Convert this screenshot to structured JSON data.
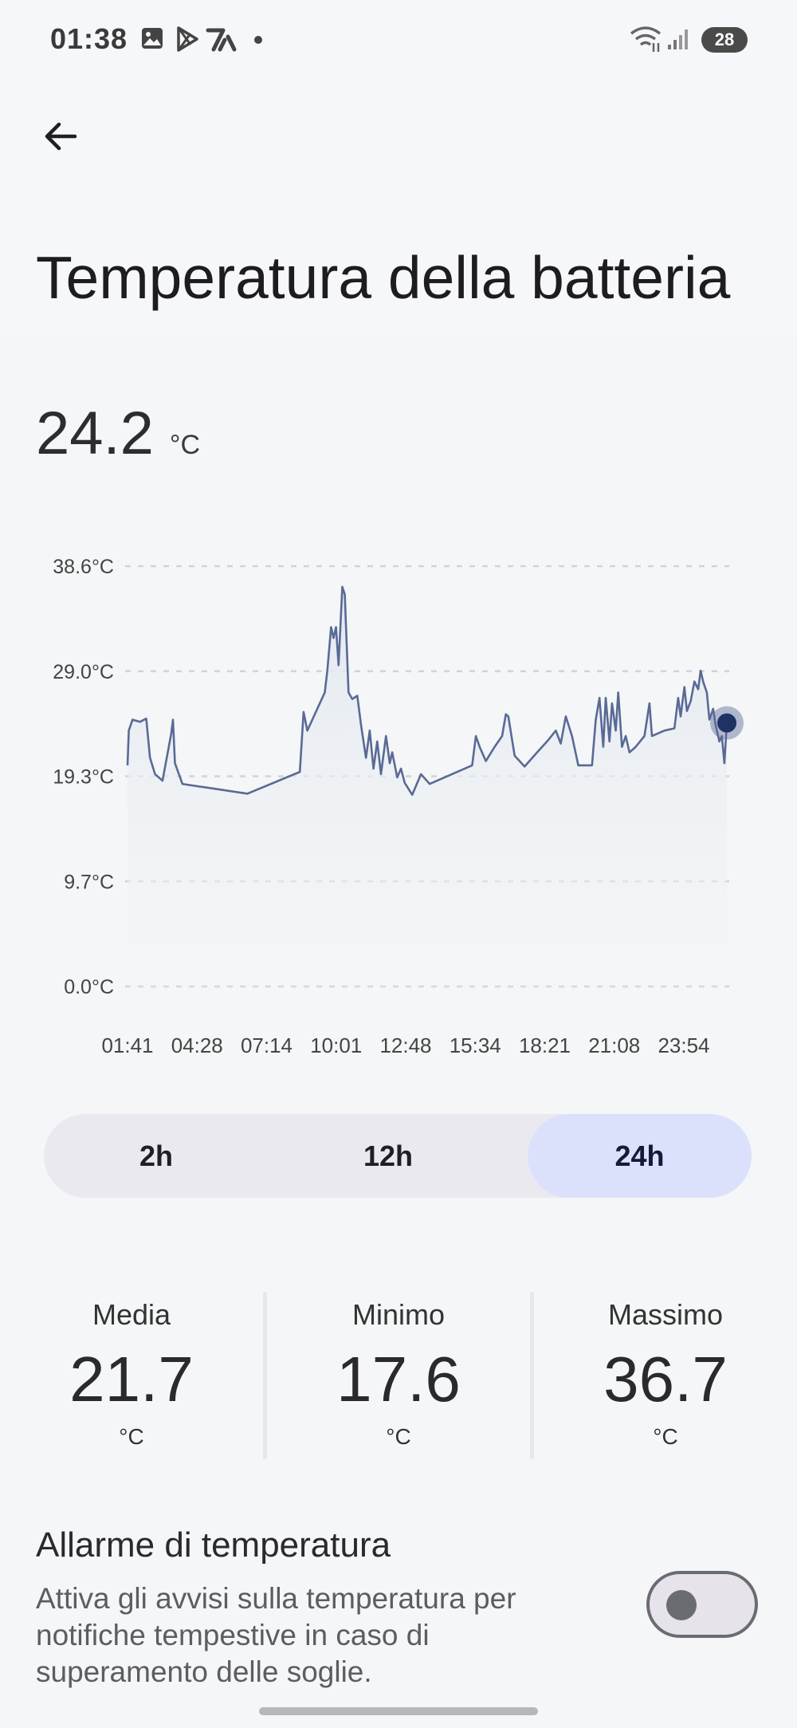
{
  "status_bar": {
    "time": "01:38",
    "battery_level": "28",
    "icons": [
      "image-icon",
      "play-store-icon",
      "app-icon",
      "dot-icon",
      "wifi-icon",
      "signal-icon",
      "battery-icon"
    ]
  },
  "header": {
    "back_icon": "arrow-left-icon",
    "title": "Temperatura della batteria"
  },
  "current": {
    "value": "24.2",
    "unit": "°C"
  },
  "chart_data": {
    "type": "area",
    "title": "",
    "xlabel": "",
    "ylabel": "",
    "y_ticks": [
      "38.6°C",
      "29.0°C",
      "19.3°C",
      "9.7°C",
      "0.0°C"
    ],
    "x_ticks": [
      "01:41",
      "04:28",
      "07:14",
      "10:01",
      "12:48",
      "15:34",
      "18:21",
      "21:08",
      "23:54"
    ],
    "ylim": [
      0,
      38.6
    ],
    "x_unit": "hours from 01:41",
    "x_range": [
      0,
      24
    ],
    "grid": true,
    "line_color": "#5a6a96",
    "fill_color": "#e4eaf1",
    "marker_color": "#1f3264",
    "series": [
      {
        "points": [
          [
            0.0,
            20.3
          ],
          [
            0.05,
            23.5
          ],
          [
            0.2,
            24.5
          ],
          [
            0.5,
            24.3
          ],
          [
            0.75,
            24.6
          ],
          [
            0.9,
            21.0
          ],
          [
            1.1,
            19.5
          ],
          [
            1.4,
            18.9
          ],
          [
            1.75,
            23.2
          ],
          [
            1.82,
            24.5
          ],
          [
            1.9,
            20.5
          ],
          [
            2.2,
            18.6
          ],
          [
            4.8,
            17.7
          ],
          [
            6.9,
            19.7
          ],
          [
            7.05,
            25.2
          ],
          [
            7.2,
            23.5
          ],
          [
            7.9,
            27.0
          ],
          [
            8.0,
            29.0
          ],
          [
            8.15,
            33.0
          ],
          [
            8.25,
            32.0
          ],
          [
            8.35,
            33.0
          ],
          [
            8.45,
            29.5
          ],
          [
            8.6,
            36.7
          ],
          [
            8.7,
            36.0
          ],
          [
            8.85,
            27.0
          ],
          [
            9.0,
            26.4
          ],
          [
            9.2,
            26.7
          ],
          [
            9.35,
            24.0
          ],
          [
            9.55,
            21.0
          ],
          [
            9.7,
            23.5
          ],
          [
            9.85,
            20.0
          ],
          [
            10.0,
            22.5
          ],
          [
            10.15,
            19.5
          ],
          [
            10.35,
            23.0
          ],
          [
            10.5,
            20.5
          ],
          [
            10.6,
            21.5
          ],
          [
            10.8,
            19.2
          ],
          [
            10.95,
            20.0
          ],
          [
            11.1,
            18.7
          ],
          [
            11.4,
            17.6
          ],
          [
            11.75,
            19.5
          ],
          [
            12.1,
            18.6
          ],
          [
            13.8,
            20.3
          ],
          [
            13.95,
            23.0
          ],
          [
            14.1,
            22.0
          ],
          [
            14.35,
            20.7
          ],
          [
            14.7,
            22.0
          ],
          [
            15.0,
            23.0
          ],
          [
            15.15,
            25.0
          ],
          [
            15.25,
            24.8
          ],
          [
            15.5,
            21.2
          ],
          [
            15.9,
            20.2
          ],
          [
            16.4,
            21.5
          ],
          [
            16.8,
            22.5
          ],
          [
            17.15,
            23.5
          ],
          [
            17.35,
            22.3
          ],
          [
            17.55,
            24.8
          ],
          [
            17.8,
            23.0
          ],
          [
            18.05,
            20.3
          ],
          [
            18.6,
            20.3
          ],
          [
            18.75,
            24.5
          ],
          [
            18.9,
            26.5
          ],
          [
            19.05,
            22.0
          ],
          [
            19.15,
            26.5
          ],
          [
            19.3,
            22.5
          ],
          [
            19.4,
            26.0
          ],
          [
            19.55,
            23.5
          ],
          [
            19.65,
            27.0
          ],
          [
            19.8,
            22.0
          ],
          [
            19.95,
            23.0
          ],
          [
            20.1,
            21.5
          ],
          [
            20.35,
            22.0
          ],
          [
            20.7,
            23.0
          ],
          [
            20.9,
            26.0
          ],
          [
            21.0,
            23.0
          ],
          [
            21.5,
            23.5
          ],
          [
            21.9,
            23.7
          ],
          [
            22.05,
            26.5
          ],
          [
            22.15,
            24.8
          ],
          [
            22.3,
            27.5
          ],
          [
            22.4,
            25.3
          ],
          [
            22.55,
            26.2
          ],
          [
            22.7,
            28.0
          ],
          [
            22.85,
            27.3
          ],
          [
            22.95,
            29.0
          ],
          [
            23.05,
            28.0
          ],
          [
            23.2,
            27.0
          ],
          [
            23.3,
            24.5
          ],
          [
            23.45,
            25.5
          ],
          [
            23.55,
            24.0
          ],
          [
            23.7,
            22.5
          ],
          [
            23.8,
            23.0
          ],
          [
            23.9,
            20.5
          ],
          [
            24.0,
            24.2
          ]
        ]
      }
    ]
  },
  "range_selector": {
    "options": [
      "2h",
      "12h",
      "24h"
    ],
    "selected": "24h"
  },
  "stats": [
    {
      "label": "Media",
      "value": "21.7",
      "unit": "°C"
    },
    {
      "label": "Minimo",
      "value": "17.6",
      "unit": "°C"
    },
    {
      "label": "Massimo",
      "value": "36.7",
      "unit": "°C"
    }
  ],
  "alarm": {
    "title": "Allarme di temperatura",
    "description": "Attiva gli avvisi sulla temperatura per notifiche tempestive in caso di superamento delle soglie.",
    "enabled": false
  }
}
